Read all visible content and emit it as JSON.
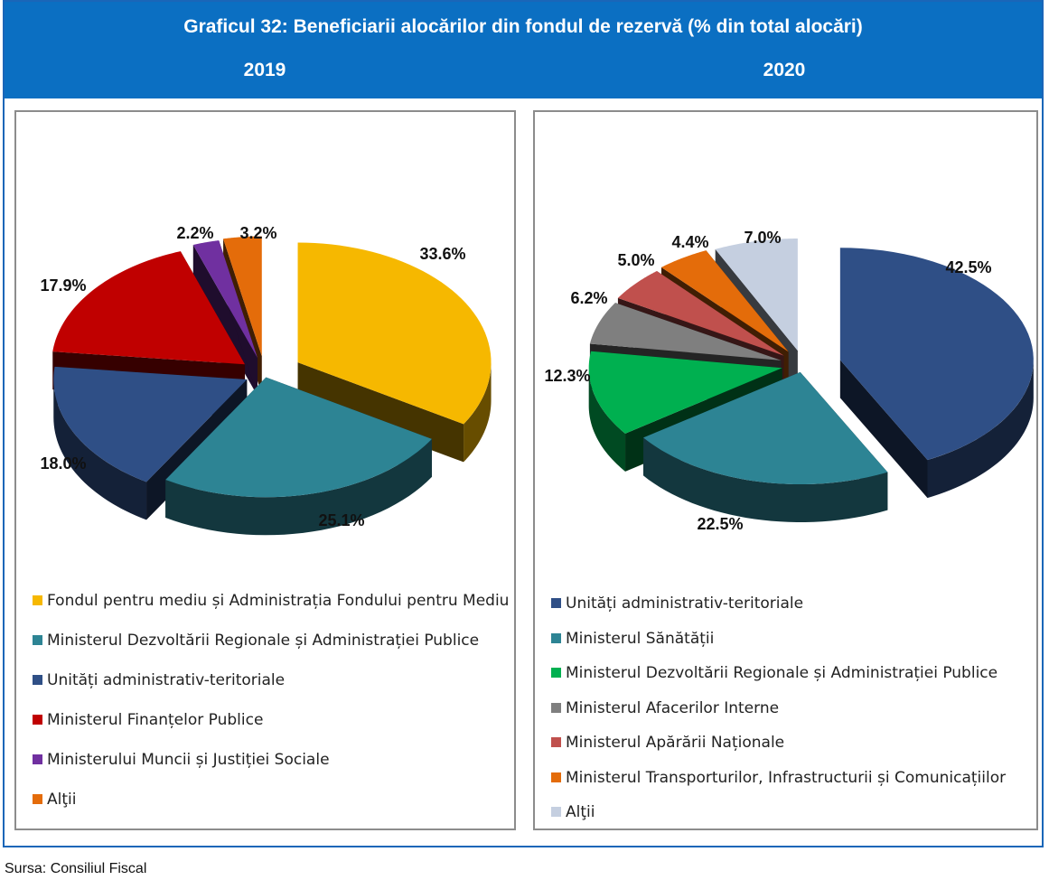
{
  "header": {
    "title": "Graficul 32: Beneficiarii alocărilor din fondul de rezervă  (% din total alocări)"
  },
  "footer": {
    "source": "Sursa: Consiliul Fiscal"
  },
  "chart_data": [
    {
      "type": "pie",
      "title": "2019",
      "labels": [
        "Fondul pentru mediu și Administrația Fondului pentru Mediu",
        "Ministerul Dezvoltării Regionale și Administrației Publice",
        "Unități administrativ-teritoriale",
        "Ministerul Finanțelor Publice",
        "Ministerului Muncii și Justiției Sociale",
        "Alţii"
      ],
      "values": [
        33.6,
        25.1,
        18.0,
        17.9,
        2.2,
        3.2
      ],
      "data_labels": [
        "33.6%",
        "25.1%",
        "18.0%",
        "17.9%",
        "2.2%",
        "3.2%"
      ],
      "colors": [
        "#f6b800",
        "#2d8494",
        "#2f4f86",
        "#c00000",
        "#7030a0",
        "#e46c0a"
      ],
      "legend_position": "bottom"
    },
    {
      "type": "pie",
      "title": "2020",
      "labels": [
        "Unități administrativ-teritoriale",
        "Ministerul Sănătății",
        "Ministerul Dezvoltării Regionale și Administrației Publice",
        "Ministerul Afacerilor Interne",
        "Ministerul Apărării Naționale",
        "Ministerul Transporturilor, Infrastructurii și Comunicațiilor",
        "Alţii"
      ],
      "values": [
        42.5,
        22.5,
        12.3,
        6.2,
        5.0,
        4.4,
        7.0
      ],
      "data_labels": [
        "42.5%",
        "22.5%",
        "12.3%",
        "6.2%",
        "5.0%",
        "4.4%",
        "7.0%"
      ],
      "colors": [
        "#2f4f86",
        "#2d8494",
        "#00b050",
        "#7f7f7f",
        "#c0504d",
        "#e46c0a",
        "#c5cfe0"
      ],
      "legend_position": "bottom"
    }
  ]
}
